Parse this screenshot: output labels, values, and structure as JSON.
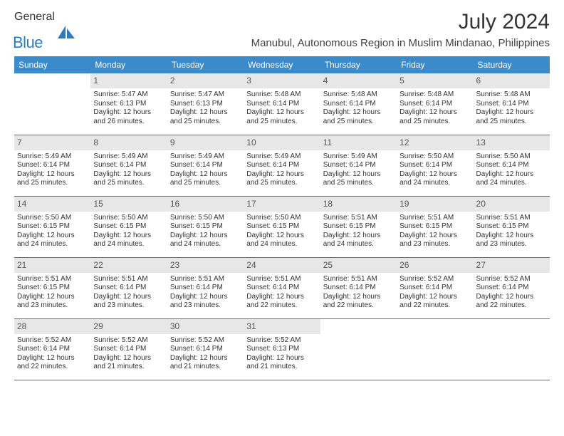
{
  "brand": {
    "part1": "General",
    "part2": "Blue"
  },
  "title": "July 2024",
  "location": "Manubul, Autonomous Region in Muslim Mindanao, Philippines",
  "colors": {
    "header_bg": "#3b8aca",
    "header_text": "#ffffff",
    "daynum_bg": "#e7e7e7",
    "row_divider": "#2e7cc0",
    "brand_accent": "#2e7cc0",
    "text": "#333333",
    "background": "#ffffff"
  },
  "weekdays": [
    "Sunday",
    "Monday",
    "Tuesday",
    "Wednesday",
    "Thursday",
    "Friday",
    "Saturday"
  ],
  "weeks": [
    [
      null,
      {
        "n": "1",
        "sr": "Sunrise: 5:47 AM",
        "ss": "Sunset: 6:13 PM",
        "d1": "Daylight: 12 hours",
        "d2": "and 26 minutes."
      },
      {
        "n": "2",
        "sr": "Sunrise: 5:47 AM",
        "ss": "Sunset: 6:13 PM",
        "d1": "Daylight: 12 hours",
        "d2": "and 25 minutes."
      },
      {
        "n": "3",
        "sr": "Sunrise: 5:48 AM",
        "ss": "Sunset: 6:14 PM",
        "d1": "Daylight: 12 hours",
        "d2": "and 25 minutes."
      },
      {
        "n": "4",
        "sr": "Sunrise: 5:48 AM",
        "ss": "Sunset: 6:14 PM",
        "d1": "Daylight: 12 hours",
        "d2": "and 25 minutes."
      },
      {
        "n": "5",
        "sr": "Sunrise: 5:48 AM",
        "ss": "Sunset: 6:14 PM",
        "d1": "Daylight: 12 hours",
        "d2": "and 25 minutes."
      },
      {
        "n": "6",
        "sr": "Sunrise: 5:48 AM",
        "ss": "Sunset: 6:14 PM",
        "d1": "Daylight: 12 hours",
        "d2": "and 25 minutes."
      }
    ],
    [
      {
        "n": "7",
        "sr": "Sunrise: 5:49 AM",
        "ss": "Sunset: 6:14 PM",
        "d1": "Daylight: 12 hours",
        "d2": "and 25 minutes."
      },
      {
        "n": "8",
        "sr": "Sunrise: 5:49 AM",
        "ss": "Sunset: 6:14 PM",
        "d1": "Daylight: 12 hours",
        "d2": "and 25 minutes."
      },
      {
        "n": "9",
        "sr": "Sunrise: 5:49 AM",
        "ss": "Sunset: 6:14 PM",
        "d1": "Daylight: 12 hours",
        "d2": "and 25 minutes."
      },
      {
        "n": "10",
        "sr": "Sunrise: 5:49 AM",
        "ss": "Sunset: 6:14 PM",
        "d1": "Daylight: 12 hours",
        "d2": "and 25 minutes."
      },
      {
        "n": "11",
        "sr": "Sunrise: 5:49 AM",
        "ss": "Sunset: 6:14 PM",
        "d1": "Daylight: 12 hours",
        "d2": "and 25 minutes."
      },
      {
        "n": "12",
        "sr": "Sunrise: 5:50 AM",
        "ss": "Sunset: 6:14 PM",
        "d1": "Daylight: 12 hours",
        "d2": "and 24 minutes."
      },
      {
        "n": "13",
        "sr": "Sunrise: 5:50 AM",
        "ss": "Sunset: 6:14 PM",
        "d1": "Daylight: 12 hours",
        "d2": "and 24 minutes."
      }
    ],
    [
      {
        "n": "14",
        "sr": "Sunrise: 5:50 AM",
        "ss": "Sunset: 6:15 PM",
        "d1": "Daylight: 12 hours",
        "d2": "and 24 minutes."
      },
      {
        "n": "15",
        "sr": "Sunrise: 5:50 AM",
        "ss": "Sunset: 6:15 PM",
        "d1": "Daylight: 12 hours",
        "d2": "and 24 minutes."
      },
      {
        "n": "16",
        "sr": "Sunrise: 5:50 AM",
        "ss": "Sunset: 6:15 PM",
        "d1": "Daylight: 12 hours",
        "d2": "and 24 minutes."
      },
      {
        "n": "17",
        "sr": "Sunrise: 5:50 AM",
        "ss": "Sunset: 6:15 PM",
        "d1": "Daylight: 12 hours",
        "d2": "and 24 minutes."
      },
      {
        "n": "18",
        "sr": "Sunrise: 5:51 AM",
        "ss": "Sunset: 6:15 PM",
        "d1": "Daylight: 12 hours",
        "d2": "and 24 minutes."
      },
      {
        "n": "19",
        "sr": "Sunrise: 5:51 AM",
        "ss": "Sunset: 6:15 PM",
        "d1": "Daylight: 12 hours",
        "d2": "and 23 minutes."
      },
      {
        "n": "20",
        "sr": "Sunrise: 5:51 AM",
        "ss": "Sunset: 6:15 PM",
        "d1": "Daylight: 12 hours",
        "d2": "and 23 minutes."
      }
    ],
    [
      {
        "n": "21",
        "sr": "Sunrise: 5:51 AM",
        "ss": "Sunset: 6:15 PM",
        "d1": "Daylight: 12 hours",
        "d2": "and 23 minutes."
      },
      {
        "n": "22",
        "sr": "Sunrise: 5:51 AM",
        "ss": "Sunset: 6:14 PM",
        "d1": "Daylight: 12 hours",
        "d2": "and 23 minutes."
      },
      {
        "n": "23",
        "sr": "Sunrise: 5:51 AM",
        "ss": "Sunset: 6:14 PM",
        "d1": "Daylight: 12 hours",
        "d2": "and 23 minutes."
      },
      {
        "n": "24",
        "sr": "Sunrise: 5:51 AM",
        "ss": "Sunset: 6:14 PM",
        "d1": "Daylight: 12 hours",
        "d2": "and 22 minutes."
      },
      {
        "n": "25",
        "sr": "Sunrise: 5:51 AM",
        "ss": "Sunset: 6:14 PM",
        "d1": "Daylight: 12 hours",
        "d2": "and 22 minutes."
      },
      {
        "n": "26",
        "sr": "Sunrise: 5:52 AM",
        "ss": "Sunset: 6:14 PM",
        "d1": "Daylight: 12 hours",
        "d2": "and 22 minutes."
      },
      {
        "n": "27",
        "sr": "Sunrise: 5:52 AM",
        "ss": "Sunset: 6:14 PM",
        "d1": "Daylight: 12 hours",
        "d2": "and 22 minutes."
      }
    ],
    [
      {
        "n": "28",
        "sr": "Sunrise: 5:52 AM",
        "ss": "Sunset: 6:14 PM",
        "d1": "Daylight: 12 hours",
        "d2": "and 22 minutes."
      },
      {
        "n": "29",
        "sr": "Sunrise: 5:52 AM",
        "ss": "Sunset: 6:14 PM",
        "d1": "Daylight: 12 hours",
        "d2": "and 21 minutes."
      },
      {
        "n": "30",
        "sr": "Sunrise: 5:52 AM",
        "ss": "Sunset: 6:14 PM",
        "d1": "Daylight: 12 hours",
        "d2": "and 21 minutes."
      },
      {
        "n": "31",
        "sr": "Sunrise: 5:52 AM",
        "ss": "Sunset: 6:13 PM",
        "d1": "Daylight: 12 hours",
        "d2": "and 21 minutes."
      },
      null,
      null,
      null
    ]
  ]
}
